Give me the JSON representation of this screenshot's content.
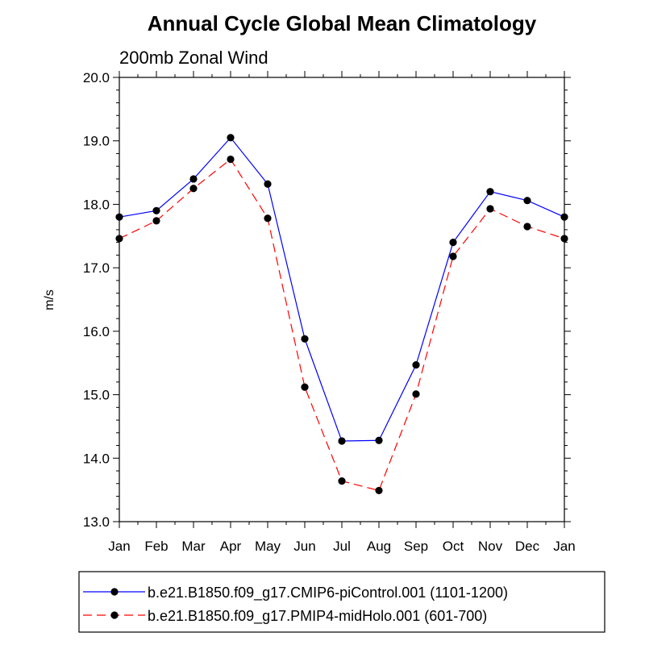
{
  "chart_data": {
    "type": "line",
    "title": "Annual Cycle Global Mean Climatology",
    "subtitle": "200mb Zonal Wind",
    "ylabel": "m/s",
    "xlabel": "",
    "categories": [
      "Jan",
      "Feb",
      "Mar",
      "Apr",
      "May",
      "Jun",
      "Jul",
      "Aug",
      "Sep",
      "Oct",
      "Nov",
      "Dec",
      "Jan"
    ],
    "ylim": [
      13.0,
      20.0
    ],
    "yticks": [
      "13.0",
      "14.0",
      "15.0",
      "16.0",
      "17.0",
      "18.0",
      "19.0",
      "20.0"
    ],
    "series": [
      {
        "name": "b.e21.B1850.f09_g17.CMIP6-piControl.001 (1101-1200)",
        "color": "#0000ff",
        "dash": "solid",
        "values": [
          17.8,
          17.9,
          18.4,
          19.05,
          18.32,
          15.88,
          14.27,
          14.28,
          15.47,
          17.4,
          18.2,
          18.06,
          17.8
        ]
      },
      {
        "name": "b.e21.B1850.f09_g17.PMIP4-midHolo.001 (601-700)",
        "color": "#ff0000",
        "dash": "dashed",
        "values": [
          17.46,
          17.74,
          18.25,
          18.71,
          17.78,
          15.12,
          13.64,
          13.49,
          15.01,
          17.18,
          17.93,
          17.65,
          17.46
        ]
      }
    ],
    "legend_position": "bottom"
  }
}
